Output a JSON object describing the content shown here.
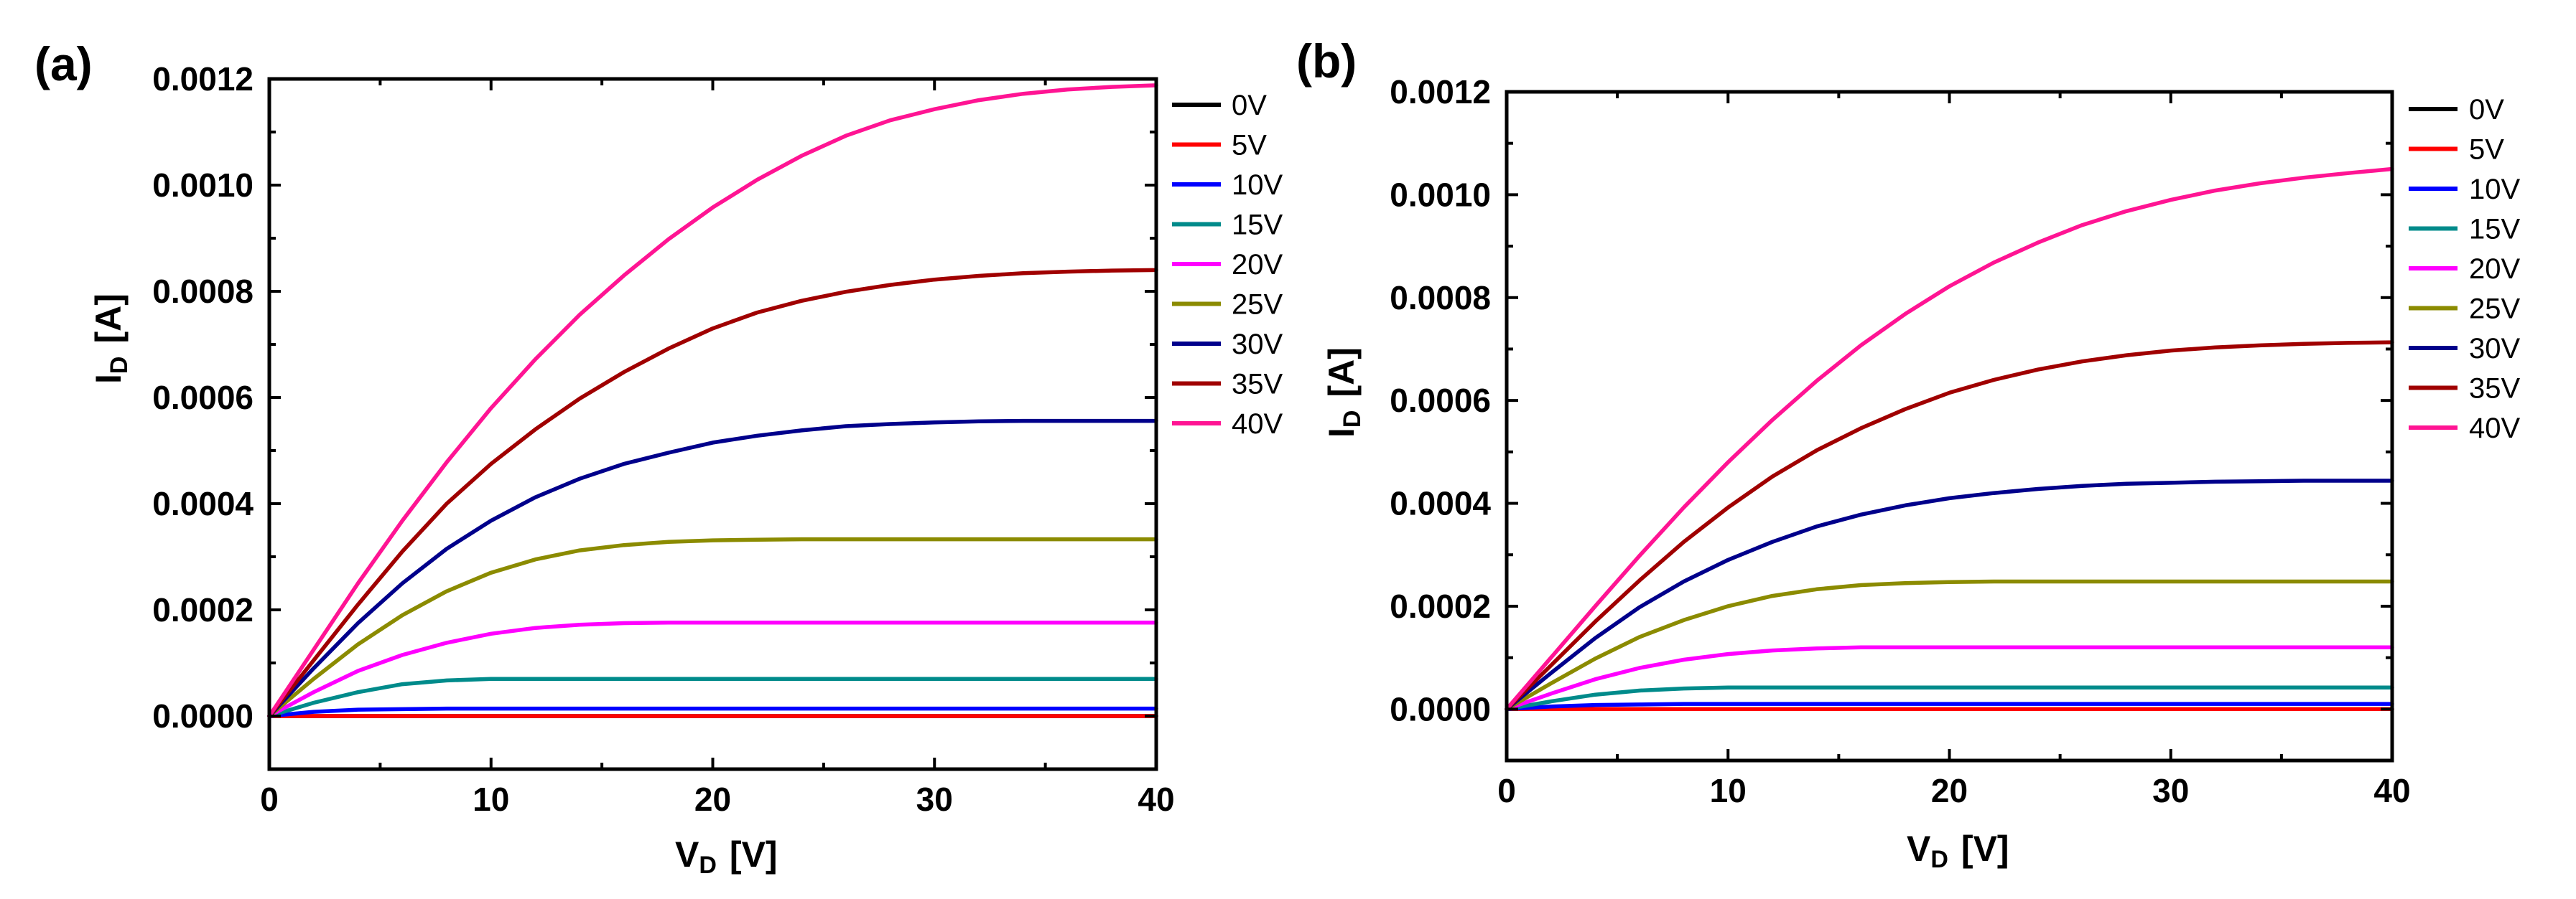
{
  "colors": {
    "0V": "#000000",
    "5V": "#ff0000",
    "10V": "#0000ff",
    "15V": "#008b8b",
    "20V": "#ff00ff",
    "25V": "#8b8b00",
    "30V": "#00008b",
    "35V": "#a00000",
    "40V": "#ff1493"
  },
  "chart_data": [
    {
      "panel_label": "(a)",
      "type": "line",
      "xlabel": {
        "main": "V",
        "sub": "D",
        "unit": "[V]"
      },
      "ylabel": {
        "main": "I",
        "sub": "D",
        "unit": "[A]"
      },
      "xlim": [
        0,
        40
      ],
      "ylim": [
        -0.0001,
        0.0012
      ],
      "xticks": [
        0,
        10,
        20,
        30,
        40
      ],
      "xtick_labels": [
        "0",
        "10",
        "20",
        "30",
        "40"
      ],
      "yticks": [
        0,
        0.0002,
        0.0004,
        0.0006,
        0.0008,
        0.001,
        0.0012
      ],
      "ytick_labels": [
        "0.0000",
        "0.0002",
        "0.0004",
        "0.0006",
        "0.0008",
        "0.0010",
        "0.0012"
      ],
      "legend_position": "outside-right",
      "x": [
        0,
        2,
        4,
        6,
        8,
        10,
        12,
        14,
        16,
        18,
        20,
        22,
        24,
        26,
        28,
        30,
        32,
        34,
        36,
        38,
        40
      ],
      "series": [
        {
          "name": "0V",
          "values": [
            0,
            0,
            0,
            0,
            0,
            0,
            0,
            0,
            0,
            0,
            0,
            0,
            0,
            0,
            0,
            0,
            0,
            0,
            0,
            0,
            0
          ]
        },
        {
          "name": "5V",
          "values": [
            0,
            0,
            0,
            0,
            0,
            0,
            0,
            0,
            0,
            0,
            0,
            0,
            0,
            0,
            0,
            0,
            0,
            0,
            0,
            0,
            0
          ]
        },
        {
          "name": "10V",
          "values": [
            0,
            8e-06,
            1.2e-05,
            1.3e-05,
            1.4e-05,
            1.4e-05,
            1.4e-05,
            1.4e-05,
            1.4e-05,
            1.4e-05,
            1.4e-05,
            1.4e-05,
            1.4e-05,
            1.4e-05,
            1.4e-05,
            1.4e-05,
            1.4e-05,
            1.4e-05,
            1.4e-05,
            1.4e-05,
            1.4e-05
          ]
        },
        {
          "name": "15V",
          "values": [
            0,
            2.5e-05,
            4.5e-05,
            6e-05,
            6.7e-05,
            7e-05,
            7e-05,
            7e-05,
            7e-05,
            7e-05,
            7e-05,
            7e-05,
            7e-05,
            7e-05,
            7e-05,
            7e-05,
            7e-05,
            7e-05,
            7e-05,
            7e-05,
            7e-05
          ]
        },
        {
          "name": "20V",
          "values": [
            0,
            4.5e-05,
            8.5e-05,
            0.000115,
            0.000138,
            0.000155,
            0.000166,
            0.000172,
            0.000175,
            0.000176,
            0.000176,
            0.000176,
            0.000176,
            0.000176,
            0.000176,
            0.000176,
            0.000176,
            0.000176,
            0.000176,
            0.000176,
            0.000176
          ]
        },
        {
          "name": "25V",
          "values": [
            0,
            7e-05,
            0.000135,
            0.00019,
            0.000235,
            0.00027,
            0.000295,
            0.000312,
            0.000322,
            0.000328,
            0.000331,
            0.000332,
            0.000333,
            0.000333,
            0.000333,
            0.000333,
            0.000333,
            0.000333,
            0.000333,
            0.000333,
            0.000333
          ]
        },
        {
          "name": "30V",
          "values": [
            0,
            9e-05,
            0.000175,
            0.00025,
            0.000315,
            0.000368,
            0.000412,
            0.000447,
            0.000475,
            0.000496,
            0.000515,
            0.000528,
            0.000538,
            0.000546,
            0.00055,
            0.000553,
            0.000555,
            0.000556,
            0.000556,
            0.000556,
            0.000556
          ]
        },
        {
          "name": "35V",
          "values": [
            0,
            0.000105,
            0.00021,
            0.00031,
            0.0004,
            0.000475,
            0.00054,
            0.000598,
            0.000648,
            0.000692,
            0.00073,
            0.00076,
            0.000782,
            0.000799,
            0.000812,
            0.000822,
            0.000829,
            0.000834,
            0.000837,
            0.000839,
            0.00084
          ]
        },
        {
          "name": "40V",
          "values": [
            0,
            0.000125,
            0.00025,
            0.000368,
            0.000478,
            0.00058,
            0.000672,
            0.000756,
            0.00083,
            0.000898,
            0.000958,
            0.00101,
            0.001055,
            0.001093,
            0.001122,
            0.001143,
            0.00116,
            0.001172,
            0.00118,
            0.001185,
            0.001188
          ]
        }
      ]
    },
    {
      "panel_label": "(b)",
      "type": "line",
      "xlabel": {
        "main": "V",
        "sub": "D",
        "unit": "[V]"
      },
      "ylabel": {
        "main": "I",
        "sub": "D",
        "unit": "[A]"
      },
      "xlim": [
        0,
        40
      ],
      "ylim": [
        -0.0001,
        0.0012
      ],
      "xticks": [
        0,
        10,
        20,
        30,
        40
      ],
      "xtick_labels": [
        "0",
        "10",
        "20",
        "30",
        "40"
      ],
      "yticks": [
        0,
        0.0002,
        0.0004,
        0.0006,
        0.0008,
        0.001,
        0.0012
      ],
      "ytick_labels": [
        "0.0000",
        "0.0002",
        "0.0004",
        "0.0006",
        "0.0008",
        "0.0010",
        "0.0012"
      ],
      "legend_position": "outside-right",
      "x": [
        0,
        2,
        4,
        6,
        8,
        10,
        12,
        14,
        16,
        18,
        20,
        22,
        24,
        26,
        28,
        30,
        32,
        34,
        36,
        38,
        40
      ],
      "series": [
        {
          "name": "0V",
          "values": [
            0,
            0,
            0,
            0,
            0,
            0,
            0,
            0,
            0,
            0,
            0,
            0,
            0,
            0,
            0,
            0,
            0,
            0,
            0,
            0,
            0
          ]
        },
        {
          "name": "5V",
          "values": [
            0,
            0,
            0,
            0,
            0,
            0,
            0,
            0,
            0,
            0,
            0,
            0,
            0,
            0,
            0,
            0,
            0,
            0,
            0,
            0,
            0
          ]
        },
        {
          "name": "10V",
          "values": [
            0,
            5e-06,
            8e-06,
            9e-06,
            1e-05,
            1e-05,
            1e-05,
            1e-05,
            1e-05,
            1e-05,
            1e-05,
            1e-05,
            1e-05,
            1e-05,
            1e-05,
            1e-05,
            1e-05,
            1e-05,
            1e-05,
            1e-05,
            1e-05
          ]
        },
        {
          "name": "15V",
          "values": [
            0,
            1.5e-05,
            2.8e-05,
            3.6e-05,
            4e-05,
            4.2e-05,
            4.2e-05,
            4.2e-05,
            4.2e-05,
            4.2e-05,
            4.2e-05,
            4.2e-05,
            4.2e-05,
            4.2e-05,
            4.2e-05,
            4.2e-05,
            4.2e-05,
            4.2e-05,
            4.2e-05,
            4.2e-05,
            4.2e-05
          ]
        },
        {
          "name": "20V",
          "values": [
            0,
            3e-05,
            5.8e-05,
            8e-05,
            9.6e-05,
            0.000107,
            0.000114,
            0.000118,
            0.00012,
            0.00012,
            0.00012,
            0.00012,
            0.00012,
            0.00012,
            0.00012,
            0.00012,
            0.00012,
            0.00012,
            0.00012,
            0.00012,
            0.00012
          ]
        },
        {
          "name": "25V",
          "values": [
            0,
            5e-05,
            9.8e-05,
            0.00014,
            0.000173,
            0.0002,
            0.00022,
            0.000233,
            0.000241,
            0.000245,
            0.000247,
            0.000248,
            0.000248,
            0.000248,
            0.000248,
            0.000248,
            0.000248,
            0.000248,
            0.000248,
            0.000248,
            0.000248
          ]
        },
        {
          "name": "30V",
          "values": [
            0,
            7e-05,
            0.000138,
            0.000198,
            0.000248,
            0.00029,
            0.000325,
            0.000355,
            0.000378,
            0.000396,
            0.00041,
            0.00042,
            0.000428,
            0.000434,
            0.000438,
            0.00044,
            0.000442,
            0.000443,
            0.000444,
            0.000444,
            0.000444
          ]
        },
        {
          "name": "35V",
          "values": [
            0,
            8.5e-05,
            0.00017,
            0.00025,
            0.000325,
            0.000392,
            0.000452,
            0.000503,
            0.000546,
            0.000583,
            0.000615,
            0.00064,
            0.00066,
            0.000676,
            0.000688,
            0.000697,
            0.000703,
            0.000707,
            0.00071,
            0.000712,
            0.000713
          ]
        },
        {
          "name": "40V",
          "values": [
            0,
            0.0001,
            0.0002,
            0.000298,
            0.000392,
            0.00048,
            0.000562,
            0.000638,
            0.000707,
            0.000768,
            0.000822,
            0.000868,
            0.000907,
            0.000941,
            0.000968,
            0.00099,
            0.001008,
            0.001022,
            0.001033,
            0.001042,
            0.00105
          ]
        }
      ]
    }
  ]
}
